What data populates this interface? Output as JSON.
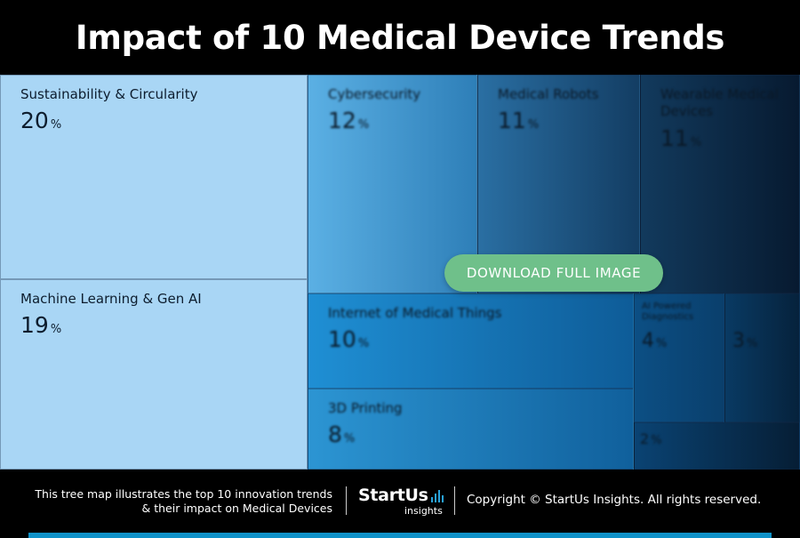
{
  "header": {
    "title": "Impact of 10 Medical Device Trends"
  },
  "chart_data": {
    "type": "treemap",
    "title": "Impact of 10 Medical Device Trends",
    "unit": "%",
    "items": [
      {
        "label": "Sustainability & Circularity",
        "value": 20
      },
      {
        "label": "Machine Learning & Gen AI",
        "value": 19
      },
      {
        "label": "Cybersecurity",
        "value": 12
      },
      {
        "label": "Medical Robots",
        "value": 11
      },
      {
        "label": "Wearable Medical Devices",
        "value": 11
      },
      {
        "label": "Internet of Medical Things",
        "value": 10
      },
      {
        "label": "3D Printing",
        "value": 8
      },
      {
        "label": "AI Powered Diagnostics",
        "value": 4
      },
      {
        "label": "",
        "value": 3
      },
      {
        "label": "",
        "value": 2
      }
    ]
  },
  "overlay": {
    "download_label": "DOWNLOAD FULL IMAGE"
  },
  "footer": {
    "description_line1": "This tree map illustrates the top 10 innovation trends",
    "description_line2": "& their impact on Medical Devices",
    "logo_main": "StartUs",
    "logo_sub": "insights",
    "copyright": "Copyright © StartUs Insights. All rights reserved."
  },
  "colors": {
    "light_tile": "#a9d6f5",
    "mid_tile": "#4aa5de",
    "dark_tile": "#0a2a4a",
    "accent_green": "#6fc08a",
    "accent_blue": "#0f92c9"
  }
}
